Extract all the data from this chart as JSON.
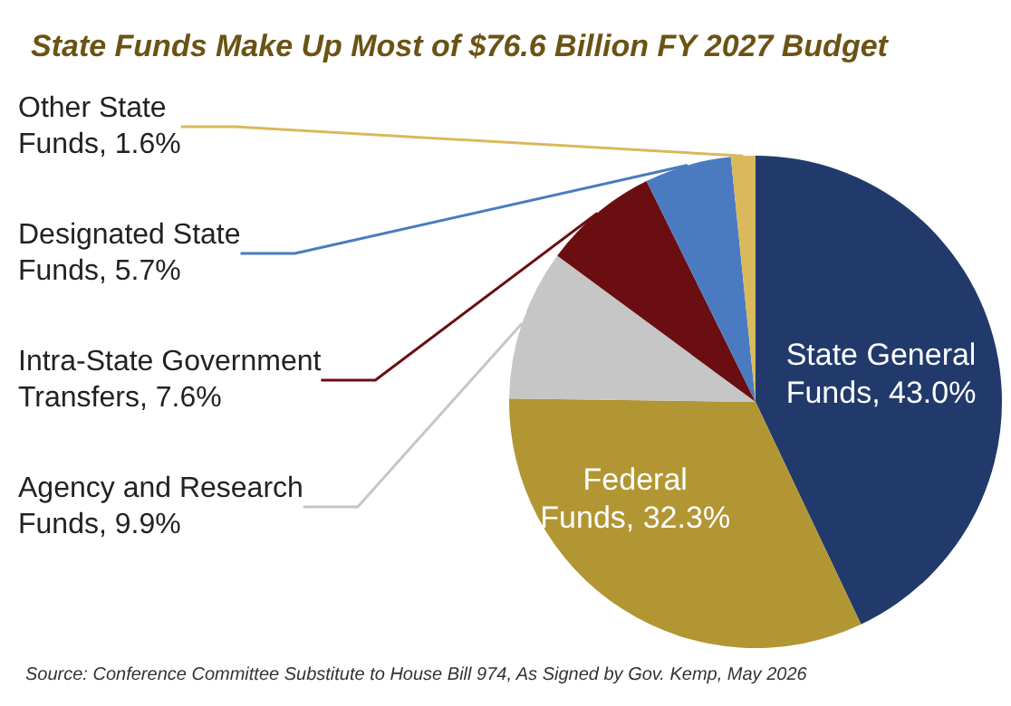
{
  "chart_data": {
    "type": "pie",
    "title": "State Funds Make Up Most of $76.6 Billion FY 2027 Budget",
    "categories": [
      "State General Funds",
      "Federal Funds",
      "Agency and Research Funds",
      "Intra-State Government Transfers",
      "Designated State Funds",
      "Other State Funds"
    ],
    "values": [
      43.0,
      32.3,
      9.9,
      7.6,
      5.7,
      1.6
    ],
    "value_labels": [
      "43.0%",
      "32.3%",
      "9.9%",
      "7.6%",
      "5.7%",
      "1.6%"
    ],
    "colors": [
      "#213a6b",
      "#b29634",
      "#c6c6c6",
      "#6a0e12",
      "#4a7bc1",
      "#d9b95c"
    ],
    "legend": false,
    "annotations": [
      "Source: Conference Committee Substitute to House Bill 974, As Signed by Gov. Kemp, May 2026"
    ]
  }
}
